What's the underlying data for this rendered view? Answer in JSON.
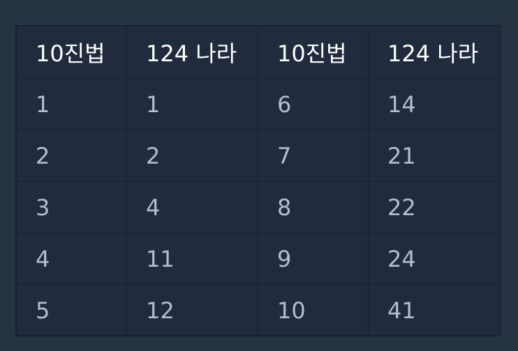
{
  "table": {
    "headers": [
      "10진법",
      "124 나라",
      "10진법",
      "124 나라"
    ],
    "rows": [
      [
        "1",
        "1",
        "6",
        "14"
      ],
      [
        "2",
        "2",
        "7",
        "21"
      ],
      [
        "3",
        "4",
        "8",
        "22"
      ],
      [
        "4",
        "11",
        "9",
        "24"
      ],
      [
        "5",
        "12",
        "10",
        "41"
      ]
    ]
  },
  "colors": {
    "page_background": "#263343",
    "table_background": "#202b3d",
    "border": "#172030",
    "header_text": "#ffffff",
    "cell_text": "#b3bfd1"
  }
}
